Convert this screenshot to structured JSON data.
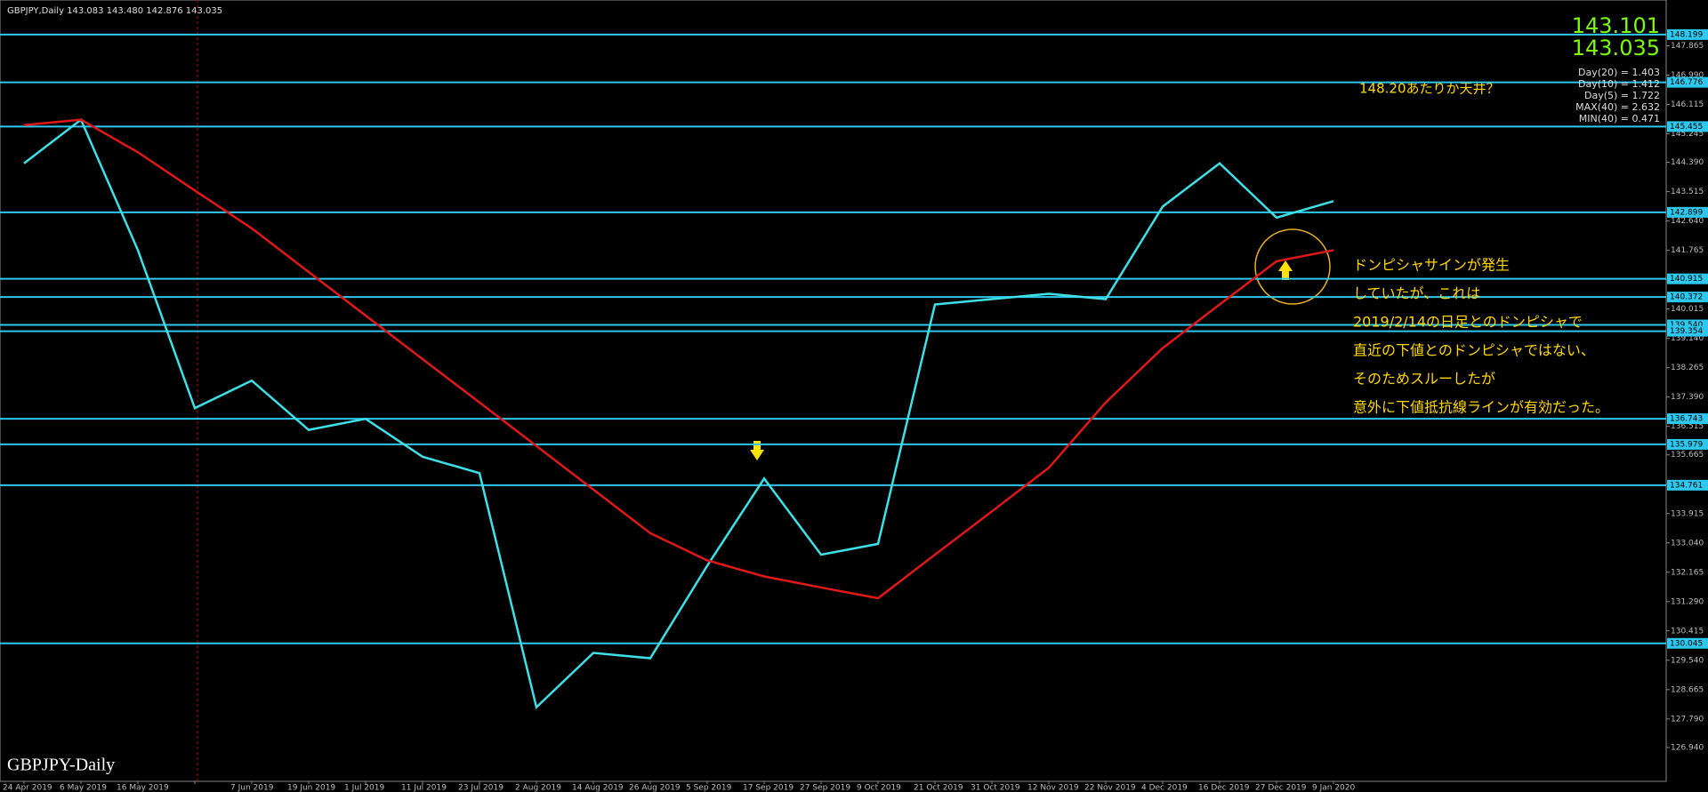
{
  "chart_data": {
    "type": "line",
    "title": "GBPJPY,Daily  143.083 143.480 142.876 143.035",
    "watermark": "GBPJPY-Daily",
    "quotes": [
      "143.101",
      "143.035"
    ],
    "stats": [
      "Day(20) = 1.403",
      "Day(10) = 1.412",
      "Day(5) = 1.722",
      "MAX(40) = 2.632",
      "MIN(40) = 0.471"
    ],
    "annotation_top": "148.20あたりか天井？",
    "annotation_lines": [
      "ドンピシャサインが発生",
      "していたが、これは",
      "2019/2/14の日足とのドンピシャで",
      "直近の下値とのドンピシャではない、",
      "そのためスルーしたが",
      "意外に下値抵抗線ラインが有効だった。"
    ],
    "categories": [
      "24 Apr 2019",
      "6 May 2019",
      "16 May 2019",
      null,
      "7 Jun 2019",
      "19 Jun 2019",
      "1 Jul 2019",
      "11 Jul 2019",
      "23 Jul 2019",
      "2 Aug 2019",
      "14 Aug 2019",
      "26 Aug 2019",
      "5 Sep 2019",
      "17 Sep 2019",
      "27 Sep 2019",
      "9 Oct 2019",
      "21 Oct 2019",
      "31 Oct 2019",
      "12 Nov 2019",
      "22 Nov 2019",
      "4 Dec 2019",
      "16 Dec 2019",
      "27 Dec 2019",
      "9 Jan 2020"
    ],
    "series": [
      {
        "color": "#3ee0e8",
        "values": [
          144.36,
          145.66,
          141.77,
          137.06,
          137.88,
          136.41,
          136.74,
          135.61,
          135.12,
          128.14,
          129.76,
          129.6,
          132.36,
          134.96,
          132.69,
          133.01,
          140.15,
          140.31,
          140.47,
          140.31,
          143.07,
          144.36,
          142.74,
          143.23
        ]
      },
      {
        "color": "#e01818",
        "values": [
          145.5,
          145.66,
          144.69,
          143.55,
          142.42,
          141.12,
          139.82,
          138.52,
          137.23,
          135.93,
          134.63,
          133.33,
          132.52,
          132.04,
          131.71,
          131.39,
          132.69,
          133.98,
          135.28,
          137.23,
          138.85,
          140.15,
          141.44,
          141.77
        ]
      }
    ],
    "ylim": [
      125.93,
      149.23
    ],
    "yticks": [
      {
        "value": 126.94,
        "label": "126.940"
      },
      {
        "value": 127.79,
        "label": "127.790"
      },
      128.665,
      {
        "value": 129.54,
        "label": "129.540"
      },
      130.415,
      {
        "value": 131.29,
        "label": "131.290"
      },
      132.165,
      {
        "value": 133.04,
        "label": "133.040"
      },
      133.915,
      {
        "value": 134.79,
        "label": "134.790"
      },
      135.665,
      136.515,
      {
        "value": 137.39,
        "label": "137.390"
      },
      138.265,
      {
        "value": 139.14,
        "label": "139.140"
      },
      140.015,
      {
        "value": 140.89,
        "label": "140.890"
      },
      141.765,
      {
        "value": 142.64,
        "label": "142.640"
      },
      143.515,
      {
        "value": 144.39,
        "label": "144.390"
      },
      145.245,
      146.115,
      {
        "value": 146.99,
        "label": "146.990"
      },
      147.865
    ],
    "hlines": [
      148.199,
      146.776,
      145.455,
      142.899,
      140.915,
      140.372,
      {
        "value": 139.54,
        "label": "139.540"
      },
      139.354,
      136.743,
      135.979,
      134.761,
      130.045
    ],
    "hline_color": "#2ec8ee"
  }
}
